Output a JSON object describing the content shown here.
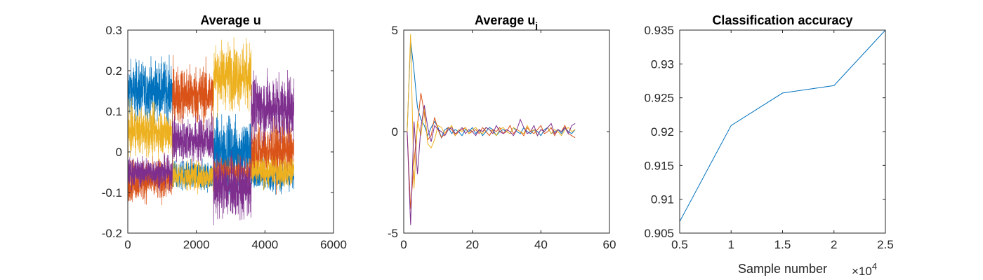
{
  "chart_data": [
    {
      "type": "line",
      "title": "Average u",
      "xlabel": "",
      "ylabel": "",
      "xlim": [
        0,
        6000
      ],
      "ylim": [
        -0.2,
        0.3
      ],
      "xticks": [
        "0",
        "2000",
        "4000",
        "6000"
      ],
      "yticks": [
        "-0.2",
        "-0.1",
        "0",
        "0.1",
        "0.2",
        "0.3"
      ],
      "grid": false,
      "legend": "none",
      "segments": [
        {
          "x_start": 0,
          "x_end": 1300
        },
        {
          "x_start": 1300,
          "x_end": 2500
        },
        {
          "x_start": 2500,
          "x_end": 3600
        },
        {
          "x_start": 3600,
          "x_end": 4850
        }
      ],
      "series": [
        {
          "color": "#0072BD",
          "segment_levels": [
            0.15,
            -0.06,
            0.0,
            -0.06
          ],
          "segment_noise": [
            0.05,
            0.025,
            0.06,
            0.025
          ]
        },
        {
          "color": "#D95319",
          "segment_levels": [
            -0.07,
            0.14,
            -0.05,
            0.0
          ],
          "segment_noise": [
            0.035,
            0.05,
            0.025,
            0.05
          ]
        },
        {
          "color": "#EDB120",
          "segment_levels": [
            0.05,
            -0.06,
            0.19,
            -0.05
          ],
          "segment_noise": [
            0.04,
            0.025,
            0.055,
            0.025
          ]
        },
        {
          "color": "#7E2F8E",
          "segment_levels": [
            -0.05,
            0.03,
            -0.09,
            0.11
          ],
          "segment_noise": [
            0.025,
            0.04,
            0.05,
            0.055
          ]
        }
      ]
    },
    {
      "type": "line",
      "title": "Average u",
      "title_subscript": "j",
      "xlabel": "",
      "ylabel": "",
      "xlim": [
        0,
        60
      ],
      "ylim": [
        -5,
        5
      ],
      "xticks": [
        "0",
        "20",
        "40",
        "60"
      ],
      "yticks": [
        "-5",
        "0",
        "5"
      ],
      "grid": false,
      "legend": "none",
      "series": [
        {
          "color": "#0072BD",
          "x": [
            1,
            2,
            3,
            4,
            5,
            6,
            7,
            8,
            9,
            10,
            11,
            12,
            13,
            14,
            15,
            16,
            17,
            18,
            19,
            20,
            21,
            22,
            23,
            24,
            25,
            26,
            27,
            28,
            29,
            30,
            31,
            32,
            33,
            34,
            35,
            36,
            37,
            38,
            39,
            40,
            41,
            42,
            43,
            44,
            45,
            46,
            47,
            48,
            49,
            50
          ],
          "values": [
            0,
            4.5,
            3.0,
            1.2,
            0.6,
            0.3,
            -0.2,
            0.2,
            0.5,
            0.2,
            -0.3,
            0.1,
            0.2,
            -0.1,
            0.1,
            0.0,
            -0.2,
            0.1,
            0.0,
            0.2,
            -0.1,
            0.1,
            -0.2,
            0.0,
            0.2,
            0.1,
            -0.2,
            0.0,
            0.1,
            0.0,
            -0.1,
            0.2,
            0.0,
            -0.1,
            0.2,
            0.0,
            -0.1,
            0.1,
            0.0,
            -0.2,
            0.1,
            0.2,
            -0.1,
            0.0,
            0.1,
            -0.1,
            0.2,
            0.0,
            -0.1,
            0.1
          ]
        },
        {
          "color": "#D95319",
          "x": [
            1,
            2,
            3,
            4,
            5,
            6,
            7,
            8,
            9,
            10,
            11,
            12,
            13,
            14,
            15,
            16,
            17,
            18,
            19,
            20,
            21,
            22,
            23,
            24,
            25,
            26,
            27,
            28,
            29,
            30,
            31,
            32,
            33,
            34,
            35,
            36,
            37,
            38,
            39,
            40,
            41,
            42,
            43,
            44,
            45,
            46,
            47,
            48,
            49,
            50
          ],
          "values": [
            0,
            -3.8,
            -1.5,
            0.3,
            1.9,
            0.9,
            -0.4,
            -0.2,
            0.7,
            0.1,
            -0.3,
            -0.1,
            0.2,
            0.1,
            -0.2,
            0.0,
            0.1,
            0.2,
            -0.1,
            0.0,
            0.1,
            -0.1,
            0.2,
            0.0,
            -0.2,
            0.1,
            0.0,
            0.2,
            -0.1,
            0.0,
            0.3,
            -0.1,
            0.1,
            0.0,
            -0.2,
            0.2,
            0.0,
            -0.1,
            0.1,
            0.3,
            -0.1,
            0.0,
            0.2,
            -0.2,
            0.1,
            0.0,
            0.3,
            -0.1,
            -0.2,
            -0.3
          ]
        },
        {
          "color": "#EDB120",
          "x": [
            1,
            2,
            3,
            4,
            5,
            6,
            7,
            8,
            9,
            10,
            11,
            12,
            13,
            14,
            15,
            16,
            17,
            18,
            19,
            20,
            21,
            22,
            23,
            24,
            25,
            26,
            27,
            28,
            29,
            30,
            31,
            32,
            33,
            34,
            35,
            36,
            37,
            38,
            39,
            40,
            41,
            42,
            43,
            44,
            45,
            46,
            47,
            48,
            49,
            50
          ],
          "values": [
            0,
            4.8,
            -2.8,
            0.5,
            -0.2,
            1.2,
            -0.6,
            -0.8,
            -0.4,
            0.3,
            0.2,
            -0.1,
            0.1,
            0.3,
            -0.2,
            0.1,
            0.0,
            0.2,
            -0.1,
            0.1,
            0.2,
            0.0,
            -0.1,
            0.2,
            0.1,
            0.0,
            -0.2,
            0.1,
            0.2,
            0.0,
            -0.1,
            0.2,
            0.1,
            0.0,
            -0.1,
            0.3,
            0.0,
            0.1,
            -0.2,
            0.1,
            0.0,
            0.2,
            -0.1,
            0.1,
            0.0,
            -0.2,
            0.1,
            0.2,
            0.0,
            0.1
          ]
        },
        {
          "color": "#7E2F8E",
          "x": [
            1,
            2,
            3,
            4,
            5,
            6,
            7,
            8,
            9,
            10,
            11,
            12,
            13,
            14,
            15,
            16,
            17,
            18,
            19,
            20,
            21,
            22,
            23,
            24,
            25,
            26,
            27,
            28,
            29,
            30,
            31,
            32,
            33,
            34,
            35,
            36,
            37,
            38,
            39,
            40,
            41,
            42,
            43,
            44,
            45,
            46,
            47,
            48,
            49,
            50
          ],
          "values": [
            0,
            -4.6,
            0.5,
            -2.1,
            0.2,
            1.3,
            0.2,
            -0.5,
            0.3,
            0.1,
            0.0,
            -0.2,
            0.1,
            0.2,
            -0.1,
            0.0,
            0.2,
            -0.1,
            0.1,
            0.0,
            -0.2,
            0.1,
            0.0,
            0.2,
            0.1,
            -0.1,
            0.3,
            0.0,
            -0.1,
            0.1,
            0.0,
            -0.2,
            0.1,
            0.6,
            0.2,
            -0.1,
            0.0,
            0.3,
            -0.2,
            0.1,
            0.0,
            0.2,
            0.4,
            -0.1,
            0.1,
            0.0,
            0.2,
            -0.1,
            0.3,
            0.4
          ]
        }
      ]
    },
    {
      "type": "line",
      "title": "Classification accuracy",
      "xlabel": "Sample number",
      "ylabel": "",
      "x_multiplier_label": "×10",
      "x_multiplier_exponent": "4",
      "xlim": [
        5000,
        25000
      ],
      "ylim": [
        0.905,
        0.935
      ],
      "xticks": [
        "0.5",
        "1",
        "1.5",
        "2",
        "2.5"
      ],
      "yticks": [
        "0.905",
        "0.91",
        "0.915",
        "0.92",
        "0.925",
        "0.93",
        "0.935"
      ],
      "grid": false,
      "legend": "none",
      "series": [
        {
          "color": "#0072BD",
          "x": [
            5000,
            10000,
            15000,
            20000,
            25000
          ],
          "values": [
            0.9067,
            0.9209,
            0.9257,
            0.9268,
            0.935
          ]
        }
      ]
    }
  ]
}
